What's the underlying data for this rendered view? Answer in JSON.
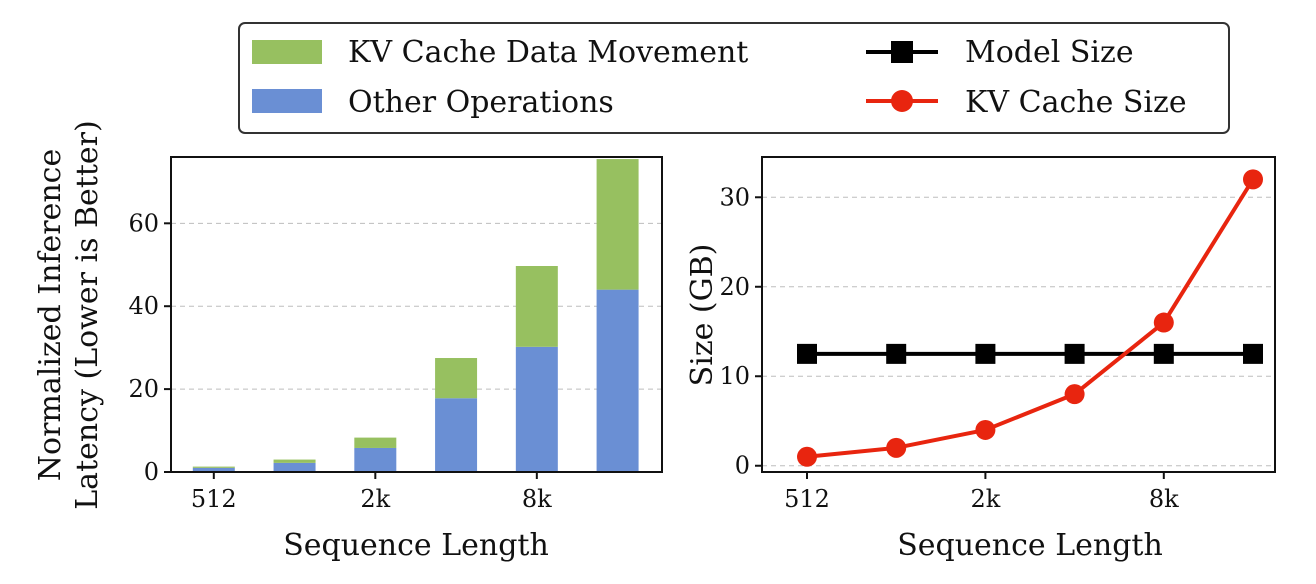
{
  "legend": {
    "items": [
      {
        "label": "KV Cache Data Movement",
        "color": "#97c060",
        "kind": "patch"
      },
      {
        "label": "Other Operations",
        "color": "#6a8fd4",
        "kind": "patch"
      },
      {
        "label": "Model Size",
        "color": "#000000",
        "kind": "line-square"
      },
      {
        "label": "KV Cache Size",
        "color": "#e8250f",
        "kind": "line-circle"
      }
    ]
  },
  "chart_data": [
    {
      "type": "bar",
      "stacked": true,
      "xlabel": "Sequence Length",
      "ylabel_lines": [
        "Normalized Inference",
        "Latency (Lower is Better)"
      ],
      "x_tick_labels": [
        {
          "index": 0,
          "label": "512"
        },
        {
          "index": 2,
          "label": "2k"
        },
        {
          "index": 4,
          "label": "8k"
        }
      ],
      "y_ticks": [
        0,
        20,
        40,
        60
      ],
      "ylim": [
        0,
        76
      ],
      "grid": true,
      "series": [
        {
          "name": "Other Operations",
          "color": "#6a8fd4",
          "values": [
            1.0,
            2.2,
            5.8,
            17.8,
            30.2,
            44.0
          ]
        },
        {
          "name": "KV Cache Data Movement",
          "color": "#97c060",
          "values": [
            0.3,
            0.8,
            2.5,
            9.7,
            19.5,
            31.5
          ]
        }
      ]
    },
    {
      "type": "line",
      "xlabel": "Sequence Length",
      "ylabel": "Size (GB)",
      "x_tick_labels": [
        {
          "index": 0,
          "label": "512"
        },
        {
          "index": 2,
          "label": "2k"
        },
        {
          "index": 4,
          "label": "8k"
        }
      ],
      "y_ticks": [
        0,
        10,
        20,
        30
      ],
      "ylim": [
        -0.7,
        34.5
      ],
      "grid": true,
      "series": [
        {
          "name": "Model Size",
          "color": "#000000",
          "marker": "square",
          "values": [
            12.5,
            12.5,
            12.5,
            12.5,
            12.5,
            12.5
          ]
        },
        {
          "name": "KV Cache Size",
          "color": "#e8250f",
          "marker": "circle",
          "values": [
            1,
            2,
            4,
            8,
            16,
            32
          ]
        }
      ]
    }
  ]
}
